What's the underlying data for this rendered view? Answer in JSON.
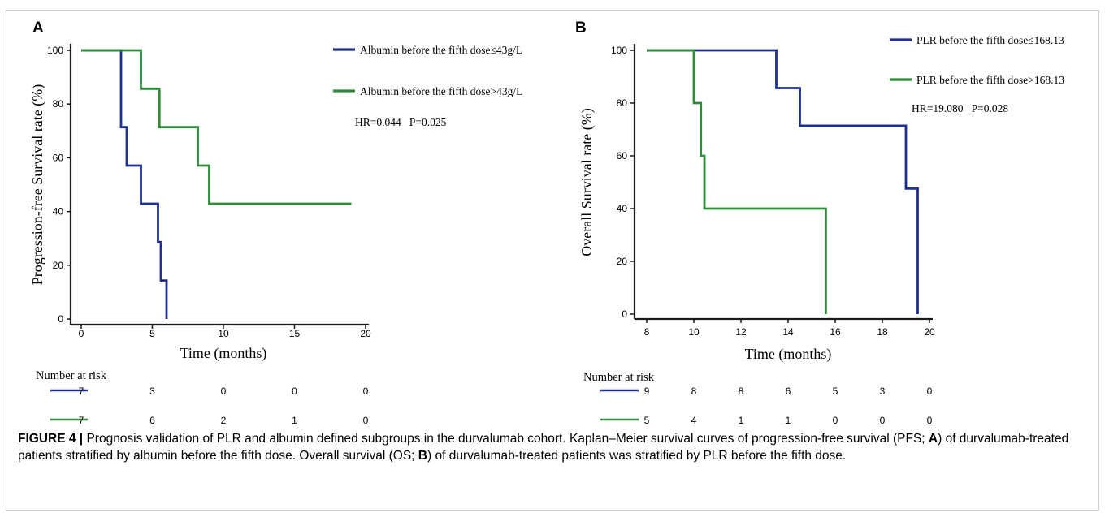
{
  "colors": {
    "blue": "#1e2f8f",
    "green": "#2f8a3a",
    "axis": "#1a1a1a"
  },
  "chart_data": [
    {
      "panel_label": "A",
      "type": "line",
      "step": true,
      "xlabel": "Time (months)",
      "ylabel": "Progression-free Survival rate (%)",
      "xlim": [
        0,
        20
      ],
      "ylim": [
        0,
        100
      ],
      "xticks": [
        0,
        5,
        10,
        15,
        20
      ],
      "yticks": [
        0,
        20,
        40,
        60,
        80,
        100
      ],
      "legend": "top-right",
      "annotation": "HR=0.044   P=0.025",
      "series": [
        {
          "name": "Albumin before the fifth dose≤43g/L",
          "color": "blue",
          "x": [
            0,
            2.8,
            3.2,
            4.2,
            5.4,
            5.6,
            6.0
          ],
          "y": [
            100,
            71.4,
            57.1,
            42.9,
            28.6,
            14.3,
            0
          ]
        },
        {
          "name": "Albumin before the fifth dose>43g/L",
          "color": "green",
          "x": [
            0,
            4.2,
            5.5,
            8.2,
            9.0,
            19.0
          ],
          "y": [
            100,
            85.7,
            71.4,
            57.1,
            42.9,
            42.9
          ]
        }
      ],
      "risk_table": {
        "title": "Number at risk",
        "x": [
          0,
          5,
          10,
          15,
          20
        ],
        "rows": [
          {
            "color": "blue",
            "values": [
              "7",
              "3",
              "0",
              "0",
              "0"
            ]
          },
          {
            "color": "green",
            "values": [
              "7",
              "6",
              "2",
              "1",
              "0"
            ]
          }
        ]
      }
    },
    {
      "panel_label": "B",
      "type": "line",
      "step": true,
      "xlabel": "Time (months)",
      "ylabel": "Overall Survival rate (%)",
      "xlim": [
        8,
        20
      ],
      "ylim": [
        0,
        100
      ],
      "xticks": [
        8,
        10,
        12,
        14,
        16,
        18,
        20
      ],
      "yticks": [
        0,
        20,
        40,
        60,
        80,
        100
      ],
      "legend": "top-right",
      "annotation": "HR=19.080   P=0.028",
      "series": [
        {
          "name": "PLR before the fifth dose≤168.13",
          "color": "blue",
          "x": [
            8,
            13.5,
            14.5,
            19.0,
            19.5
          ],
          "y": [
            100,
            85.7,
            71.4,
            47.6,
            0
          ]
        },
        {
          "name": "PLR before the fifth dose>168.13",
          "color": "green",
          "x": [
            8,
            10.0,
            10.3,
            10.45,
            15.6
          ],
          "y": [
            100,
            80,
            60,
            40,
            0
          ]
        }
      ],
      "risk_table": {
        "title": "Number at risk",
        "x": [
          8,
          10,
          12,
          14,
          16,
          18,
          20
        ],
        "rows": [
          {
            "color": "blue",
            "values": [
              "9",
              "8",
              "8",
              "6",
              "5",
              "3",
              "0"
            ]
          },
          {
            "color": "green",
            "values": [
              "5",
              "4",
              "1",
              "1",
              "0",
              "0",
              "0"
            ]
          }
        ]
      }
    }
  ],
  "caption": {
    "label": "FIGURE 4 |",
    "p1": " Prognosis validation of PLR and albumin defined subgroups in the durvalumab cohort. Kaplan–Meier survival curves of progression-free survival (PFS; ",
    "b1": "A",
    "p2": ") of durvalumab-treated patients stratified by albumin before the fifth dose. Overall survival (OS; ",
    "b2": "B",
    "p3": ") of durvalumab-treated patients was stratified by PLR before the fifth dose."
  }
}
